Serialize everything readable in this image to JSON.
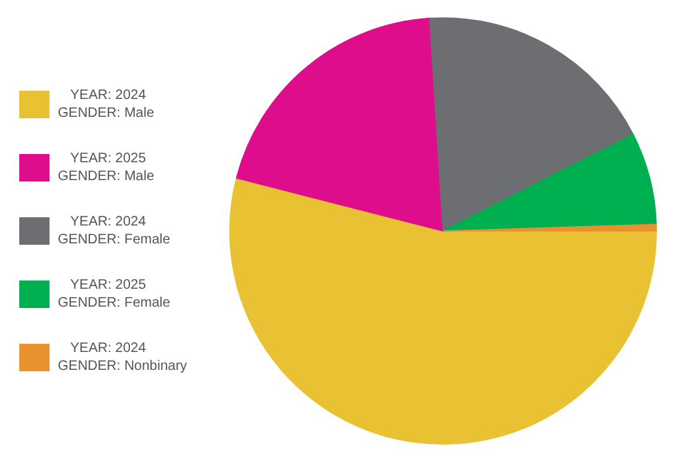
{
  "chart_data": {
    "type": "pie",
    "categories": [
      "YEAR: 2024\nGENDER: Male",
      "YEAR: 2025\nGENDER: Male",
      "YEAR: 2024\nGENDER: Female",
      "YEAR: 2025\nGENDER: Female",
      "YEAR: 2024\nGENDER: Nonbinary"
    ],
    "values": [
      54,
      20,
      18.5,
      7,
      0.5
    ],
    "colors": [
      "#e8c233",
      "#de0d8c",
      "#6d6e71",
      "#00b050",
      "#e8922f"
    ],
    "legend": "left"
  }
}
